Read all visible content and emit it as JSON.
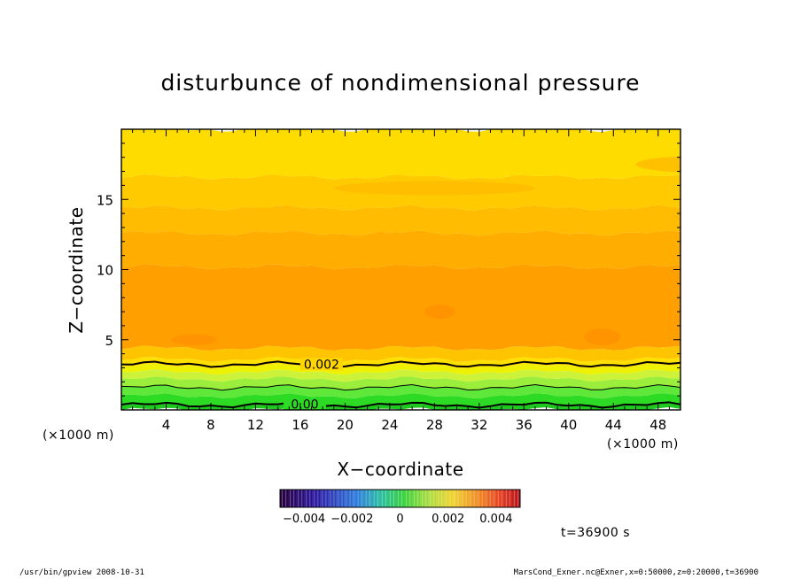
{
  "chart_data": {
    "type": "heatmap",
    "title": "disturbunce of nondimensional pressure",
    "xlabel": "X−coordinate",
    "ylabel": "Z−coordinate",
    "x_unit_left": "(×1000 m)",
    "x_unit_right": "(×1000 m)",
    "xlim": [
      0,
      50
    ],
    "ylim": [
      0,
      20
    ],
    "xticks": [
      4,
      8,
      12,
      16,
      20,
      24,
      28,
      32,
      36,
      40,
      44,
      48
    ],
    "xtick_labels": [
      "4",
      "8",
      "12",
      "16",
      "20",
      "24",
      "28",
      "32",
      "36",
      "40",
      "44",
      "48"
    ],
    "yticks": [
      5,
      10,
      15
    ],
    "ytick_labels": [
      "5",
      "10",
      "15"
    ],
    "bands": [
      {
        "z0": 0.0,
        "z1": 0.3,
        "value": -0.0003,
        "color": "#1ec81e"
      },
      {
        "z0": 0.3,
        "z1": 1.0,
        "value": 0.0,
        "color": "#2edb24"
      },
      {
        "z0": 1.0,
        "z1": 1.6,
        "value": 0.0004,
        "color": "#5fe83a"
      },
      {
        "z0": 1.6,
        "z1": 2.2,
        "value": 0.0008,
        "color": "#9bef3c"
      },
      {
        "z0": 2.2,
        "z1": 2.7,
        "value": 0.0012,
        "color": "#cdf23a"
      },
      {
        "z0": 2.7,
        "z1": 3.1,
        "value": 0.0016,
        "color": "#eef200"
      },
      {
        "z0": 3.1,
        "z1": 3.6,
        "value": 0.002,
        "color": "#ffe000"
      },
      {
        "z0": 3.6,
        "z1": 4.4,
        "value": 0.0026,
        "color": "#ffc400"
      },
      {
        "z0": 4.4,
        "z1": 10.2,
        "value": 0.003,
        "color": "#ffa000"
      },
      {
        "z0": 10.2,
        "z1": 12.6,
        "value": 0.0028,
        "color": "#ffae00"
      },
      {
        "z0": 12.6,
        "z1": 14.4,
        "value": 0.0026,
        "color": "#ffbc00"
      },
      {
        "z0": 14.4,
        "z1": 16.6,
        "value": 0.0024,
        "color": "#ffca00"
      },
      {
        "z0": 16.6,
        "z1": 20.0,
        "value": 0.0022,
        "color": "#ffdc00"
      }
    ],
    "contours": [
      {
        "level": "0.002",
        "z": 3.25,
        "label": "0.002",
        "label_x": 17.9,
        "width": 2.0
      },
      {
        "level": "0.001",
        "z": 1.6,
        "label": "",
        "label_x": 0,
        "width": 1.0
      },
      {
        "level": "0.00",
        "z": 0.35,
        "label": "0.00",
        "label_x": 16.4,
        "width": 2.0
      }
    ],
    "colorbar": {
      "min": -0.005,
      "max": 0.005,
      "tick_values": [
        -0.004,
        -0.002,
        0,
        0.002,
        0.004
      ],
      "tick_labels": [
        "−0.004",
        "−0.002",
        "0",
        "0.002",
        "0.004"
      ]
    }
  },
  "annotations": {
    "time": "t=36900 s",
    "footer_left": "/usr/bin/gpview   2008-10-31",
    "footer_right": "MarsCond_Exner.nc@Exner,x=0:50000,z=0:20000,t=36900"
  }
}
